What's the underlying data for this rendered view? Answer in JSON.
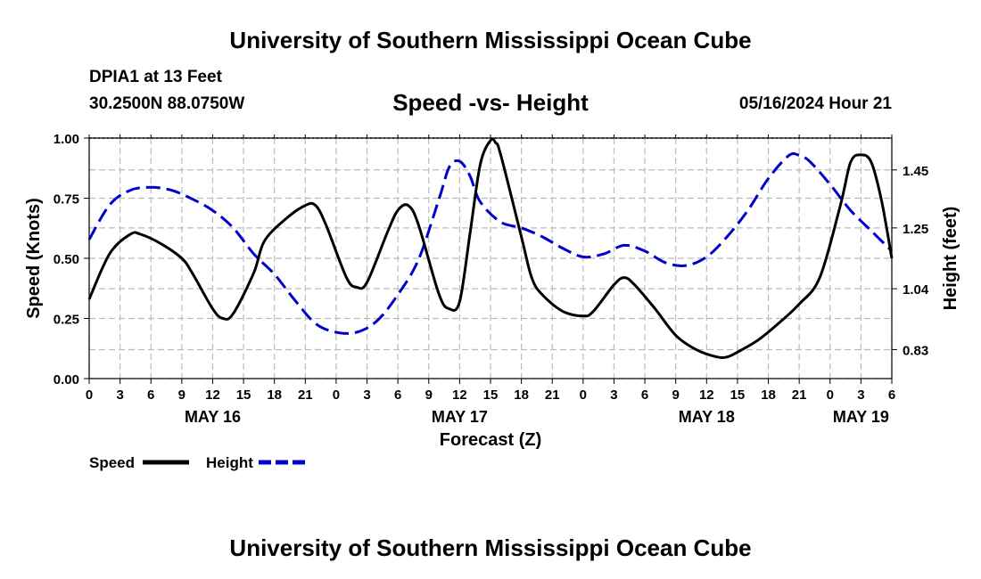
{
  "page": {
    "top_title": "University of Southern Mississippi Ocean Cube",
    "bottom_title": "University of Southern Mississippi Ocean Cube",
    "station": "DPIA1 at 13 Feet",
    "coords": "30.2500N  88.0750W",
    "datetime": "05/16/2024 Hour 21"
  },
  "chart_data": {
    "type": "line",
    "title": "Speed -vs- Height",
    "xlabel": "Forecast (Z)",
    "ylabel": "Speed (Knots)",
    "y2label": "Height (feet)",
    "x_unit": "hours from 05/16 00Z",
    "xlim": [
      0,
      78
    ],
    "ylim": [
      0,
      1.0
    ],
    "y2lim": [
      0.73,
      1.56
    ],
    "grid": true,
    "x_ticks": [
      {
        "x": 0,
        "label": "0"
      },
      {
        "x": 3,
        "label": "3"
      },
      {
        "x": 6,
        "label": "6"
      },
      {
        "x": 9,
        "label": "9"
      },
      {
        "x": 12,
        "label": "12"
      },
      {
        "x": 15,
        "label": "15"
      },
      {
        "x": 18,
        "label": "18"
      },
      {
        "x": 21,
        "label": "21"
      },
      {
        "x": 24,
        "label": "0"
      },
      {
        "x": 27,
        "label": "3"
      },
      {
        "x": 30,
        "label": "6"
      },
      {
        "x": 33,
        "label": "9"
      },
      {
        "x": 36,
        "label": "12"
      },
      {
        "x": 39,
        "label": "15"
      },
      {
        "x": 42,
        "label": "18"
      },
      {
        "x": 45,
        "label": "21"
      },
      {
        "x": 48,
        "label": "0"
      },
      {
        "x": 51,
        "label": "3"
      },
      {
        "x": 54,
        "label": "6"
      },
      {
        "x": 57,
        "label": "9"
      },
      {
        "x": 60,
        "label": "12"
      },
      {
        "x": 63,
        "label": "15"
      },
      {
        "x": 66,
        "label": "18"
      },
      {
        "x": 69,
        "label": "21"
      },
      {
        "x": 72,
        "label": "0"
      },
      {
        "x": 75,
        "label": "3"
      },
      {
        "x": 78,
        "label": "6"
      }
    ],
    "day_labels": [
      {
        "x": 12,
        "label": "MAY 16"
      },
      {
        "x": 36,
        "label": "MAY 17"
      },
      {
        "x": 60,
        "label": "MAY 18"
      },
      {
        "x": 75,
        "label": "MAY 19"
      }
    ],
    "y_ticks": [
      {
        "y": 0.0,
        "label": "0.00"
      },
      {
        "y": 0.25,
        "label": "0.25"
      },
      {
        "y": 0.5,
        "label": "0.50"
      },
      {
        "y": 0.75,
        "label": "0.75"
      },
      {
        "y": 1.0,
        "label": "1.00"
      }
    ],
    "y2_ticks": [
      {
        "y": 0.83,
        "label": "0.83"
      },
      {
        "y": 1.04,
        "label": "1.04"
      },
      {
        "y": 1.25,
        "label": "1.25"
      },
      {
        "y": 1.45,
        "label": "1.45"
      }
    ],
    "series": [
      {
        "name": "Speed",
        "axis": "left",
        "color": "#000000",
        "dash": "solid",
        "points": [
          [
            0,
            0.33
          ],
          [
            2,
            0.52
          ],
          [
            4,
            0.6
          ],
          [
            5,
            0.6
          ],
          [
            7,
            0.56
          ],
          [
            9,
            0.5
          ],
          [
            10,
            0.44
          ],
          [
            12,
            0.29
          ],
          [
            13,
            0.25
          ],
          [
            14,
            0.27
          ],
          [
            16,
            0.44
          ],
          [
            17,
            0.57
          ],
          [
            19,
            0.66
          ],
          [
            21,
            0.72
          ],
          [
            22,
            0.72
          ],
          [
            23,
            0.64
          ],
          [
            25,
            0.42
          ],
          [
            26,
            0.38
          ],
          [
            27,
            0.4
          ],
          [
            29,
            0.61
          ],
          [
            30,
            0.7
          ],
          [
            31,
            0.72
          ],
          [
            32,
            0.64
          ],
          [
            34,
            0.35
          ],
          [
            35,
            0.29
          ],
          [
            36,
            0.32
          ],
          [
            37,
            0.6
          ],
          [
            38,
            0.89
          ],
          [
            39,
            0.99
          ],
          [
            39.5,
            0.98
          ],
          [
            40,
            0.93
          ],
          [
            42,
            0.59
          ],
          [
            43,
            0.42
          ],
          [
            44,
            0.35
          ],
          [
            46,
            0.28
          ],
          [
            48,
            0.26
          ],
          [
            49,
            0.28
          ],
          [
            51,
            0.39
          ],
          [
            52,
            0.42
          ],
          [
            53,
            0.39
          ],
          [
            55,
            0.29
          ],
          [
            57,
            0.18
          ],
          [
            59,
            0.12
          ],
          [
            61,
            0.09
          ],
          [
            62,
            0.09
          ],
          [
            63,
            0.11
          ],
          [
            65,
            0.16
          ],
          [
            67,
            0.23
          ],
          [
            69,
            0.31
          ],
          [
            71,
            0.42
          ],
          [
            73,
            0.72
          ],
          [
            74,
            0.9
          ],
          [
            75,
            0.93
          ],
          [
            76,
            0.9
          ],
          [
            77,
            0.74
          ],
          [
            78,
            0.5
          ]
        ]
      },
      {
        "name": "Height",
        "axis": "right",
        "color": "#0000cc",
        "dash": "dashed",
        "points": [
          [
            0,
            1.21
          ],
          [
            2,
            1.33
          ],
          [
            4,
            1.38
          ],
          [
            6,
            1.39
          ],
          [
            8,
            1.38
          ],
          [
            10,
            1.35
          ],
          [
            12,
            1.31
          ],
          [
            14,
            1.25
          ],
          [
            16,
            1.16
          ],
          [
            18,
            1.09
          ],
          [
            20,
            1.0
          ],
          [
            22,
            0.92
          ],
          [
            24,
            0.89
          ],
          [
            26,
            0.89
          ],
          [
            28,
            0.93
          ],
          [
            30,
            1.02
          ],
          [
            32,
            1.14
          ],
          [
            34,
            1.35
          ],
          [
            35,
            1.46
          ],
          [
            36,
            1.48
          ],
          [
            37,
            1.43
          ],
          [
            38,
            1.34
          ],
          [
            40,
            1.27
          ],
          [
            42,
            1.25
          ],
          [
            44,
            1.22
          ],
          [
            46,
            1.18
          ],
          [
            48,
            1.15
          ],
          [
            50,
            1.16
          ],
          [
            52,
            1.19
          ],
          [
            54,
            1.17
          ],
          [
            56,
            1.13
          ],
          [
            58,
            1.12
          ],
          [
            60,
            1.15
          ],
          [
            62,
            1.22
          ],
          [
            64,
            1.31
          ],
          [
            66,
            1.42
          ],
          [
            68,
            1.5
          ],
          [
            69,
            1.5
          ],
          [
            70,
            1.48
          ],
          [
            72,
            1.4
          ],
          [
            74,
            1.31
          ],
          [
            76,
            1.24
          ],
          [
            78,
            1.17
          ]
        ]
      }
    ],
    "legend": [
      {
        "label": "Speed",
        "color": "#000000",
        "dash": "solid"
      },
      {
        "label": "Height",
        "color": "#0000cc",
        "dash": "dashed"
      }
    ]
  }
}
